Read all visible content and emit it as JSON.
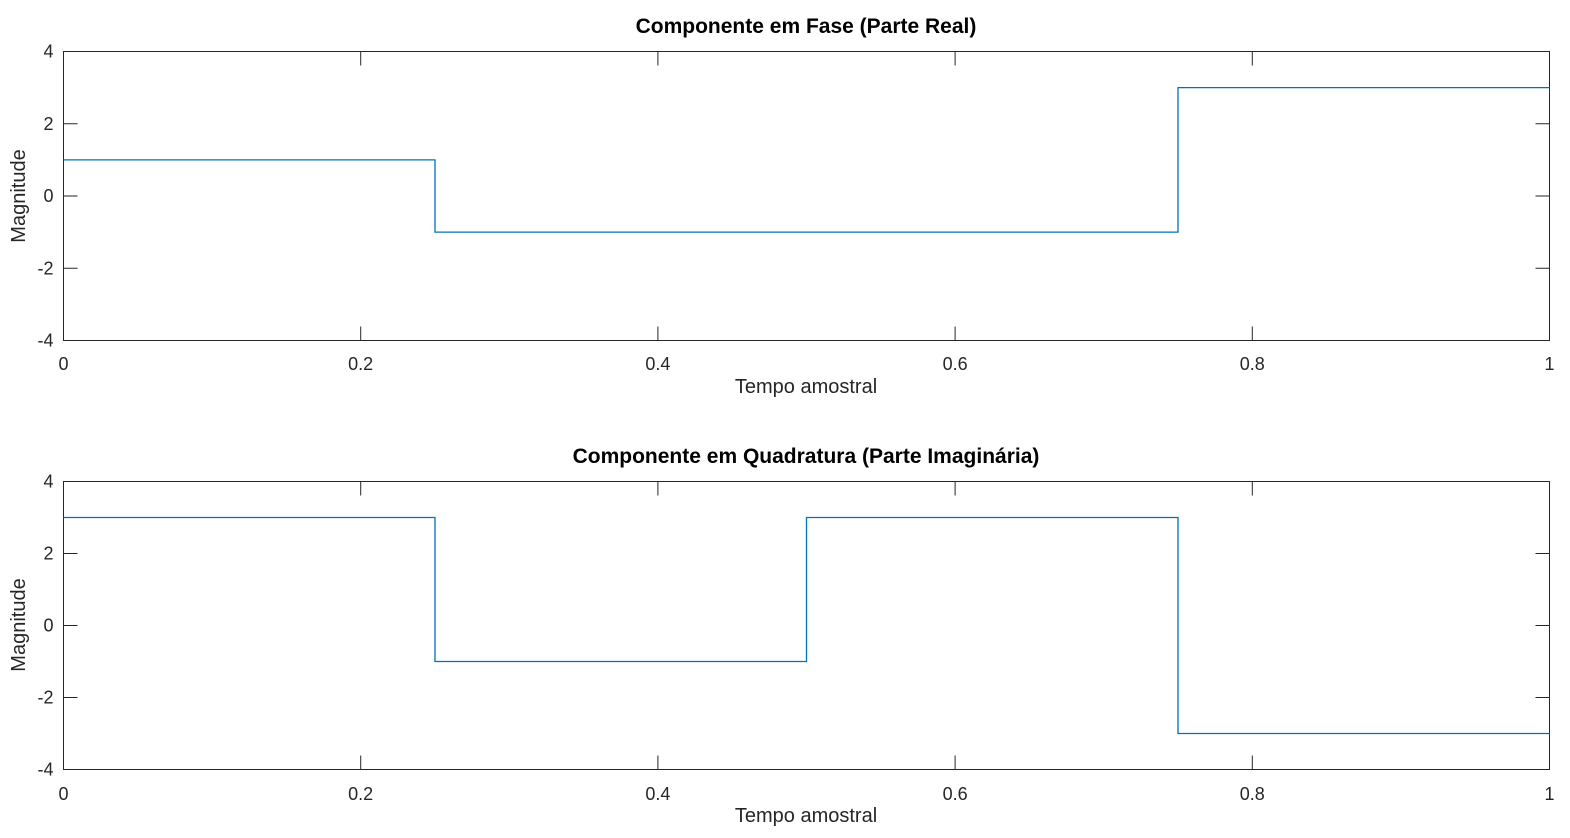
{
  "chart_data": [
    {
      "type": "line",
      "step": true,
      "title": "Componente em Fase (Parte Real)",
      "xlabel": "Tempo amostral",
      "ylabel": "Magnitude",
      "xlim": [
        0,
        1
      ],
      "ylim": [
        -4,
        4
      ],
      "xticks": [
        0,
        0.2,
        0.4,
        0.6,
        0.8,
        1
      ],
      "xtick_labels": [
        "0",
        "0.2",
        "0.4",
        "0.6",
        "0.8",
        "1"
      ],
      "yticks": [
        -4,
        -2,
        0,
        2,
        4
      ],
      "ytick_labels": [
        "-4",
        "-2",
        "0",
        "2",
        "4"
      ],
      "grid": false,
      "series": [
        {
          "color": "#0072BD",
          "x": [
            0,
            0.25,
            0.25,
            0.75,
            0.75,
            1
          ],
          "y": [
            1,
            1,
            -1,
            -1,
            3,
            3
          ]
        }
      ]
    },
    {
      "type": "line",
      "step": true,
      "title": "Componente em Quadratura (Parte Imaginária)",
      "xlabel": "Tempo amostral",
      "ylabel": "Magnitude",
      "xlim": [
        0,
        1
      ],
      "ylim": [
        -4,
        4
      ],
      "xticks": [
        0,
        0.2,
        0.4,
        0.6,
        0.8,
        1
      ],
      "xtick_labels": [
        "0",
        "0.2",
        "0.4",
        "0.6",
        "0.8",
        "1"
      ],
      "yticks": [
        -4,
        -2,
        0,
        2,
        4
      ],
      "ytick_labels": [
        "-4",
        "-2",
        "0",
        "2",
        "4"
      ],
      "grid": false,
      "series": [
        {
          "color": "#0072BD",
          "x": [
            0,
            0.25,
            0.25,
            0.5,
            0.5,
            0.75,
            0.75,
            1
          ],
          "y": [
            3,
            3,
            -1,
            -1,
            3,
            3,
            -3,
            -3
          ]
        }
      ]
    }
  ]
}
